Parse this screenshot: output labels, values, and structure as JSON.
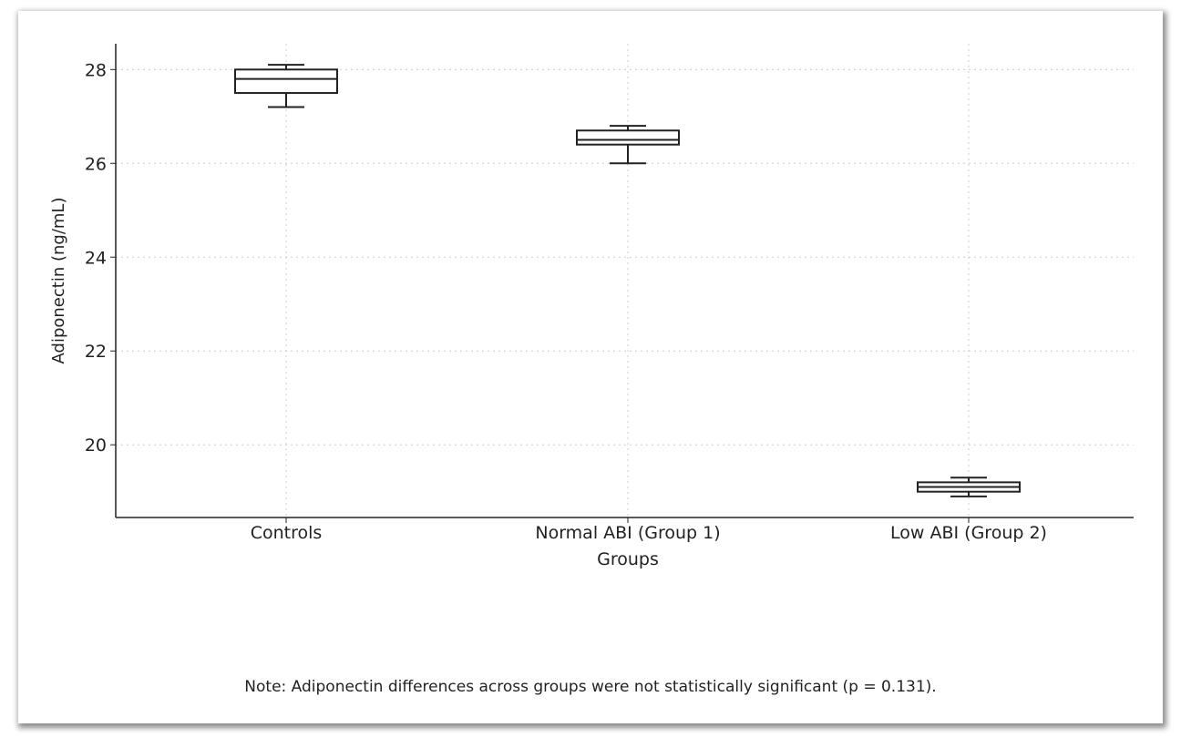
{
  "chart_data": {
    "type": "box",
    "xlabel": "Groups",
    "ylabel": "Adiponectin (ng/mL)",
    "ylim": [
      18.45,
      28.55
    ],
    "yticks": [
      20,
      22,
      24,
      26,
      28
    ],
    "grid": true,
    "categories": [
      "Controls",
      "Normal ABI (Group 1)",
      "Low ABI (Group 2)"
    ],
    "boxes": [
      {
        "min": 27.2,
        "q1": 27.5,
        "median": 27.8,
        "q3": 28.0,
        "max": 28.1
      },
      {
        "min": 26.0,
        "q1": 26.4,
        "median": 26.5,
        "q3": 26.7,
        "max": 26.8
      },
      {
        "min": 18.9,
        "q1": 19.0,
        "median": 19.1,
        "q3": 19.2,
        "max": 19.3
      }
    ],
    "note": "Note: Adiponectin differences across groups were not statistically significant (p = 0.131)."
  }
}
